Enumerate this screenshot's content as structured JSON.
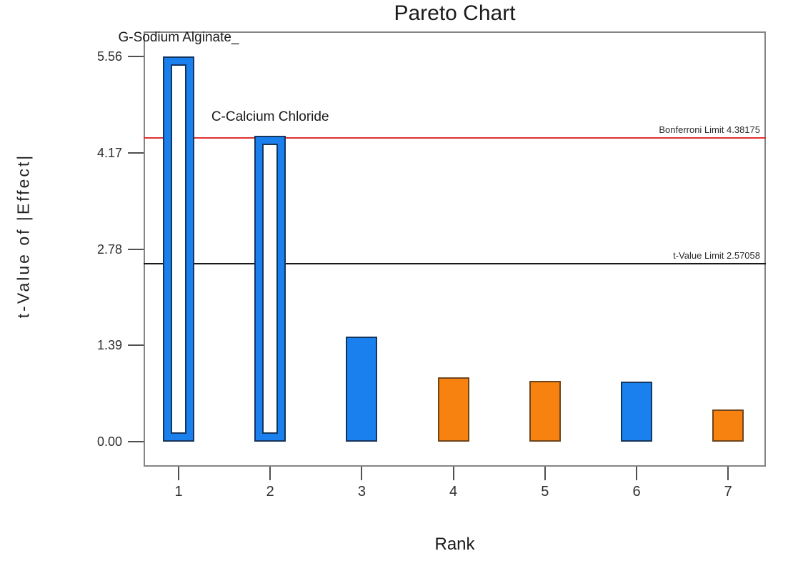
{
  "title": "Pareto Chart",
  "axes": {
    "x_label": "Rank",
    "y_label": "t-Value of |Effect|"
  },
  "colors": {
    "blue_fill": "#1a80ee",
    "blue_border": "#14355e",
    "orange_fill": "#f8820f",
    "orange_border": "#70451a",
    "red_line": "#e23030",
    "black_line": "#1a1a1a",
    "frame": "#858585",
    "tick": "#4f4f4f"
  },
  "chart_data": {
    "type": "bar",
    "title": "Pareto Chart",
    "xlabel": "Rank",
    "ylabel": "t-Value of |Effect|",
    "categories": [
      "1",
      "2",
      "3",
      "4",
      "5",
      "6",
      "7"
    ],
    "values": [
      5.56,
      4.42,
      1.52,
      0.93,
      0.88,
      0.87,
      0.46
    ],
    "bar_styles": [
      "hollow-blue",
      "hollow-blue",
      "solid-blue",
      "solid-orange",
      "solid-orange",
      "solid-blue",
      "solid-orange"
    ],
    "bar_labels": [
      {
        "bar": 1,
        "text": "G-Sodium Alginate_"
      },
      {
        "bar": 2,
        "text": "C-Calcium Chloride"
      }
    ],
    "yticks": [
      "0.00",
      "1.39",
      "2.78",
      "4.17",
      "5.56"
    ],
    "ylim": [
      -0.36,
      5.93
    ],
    "reference_lines": [
      {
        "name": "bonferroni-limit",
        "label": "Bonferroni Limit 4.38175",
        "value": 4.38175,
        "color_key": "red_line"
      },
      {
        "name": "t-value-limit",
        "label": "t-Value Limit 2.57058",
        "value": 2.57058,
        "color_key": "black_line"
      }
    ],
    "grid": false,
    "legend": "none"
  }
}
